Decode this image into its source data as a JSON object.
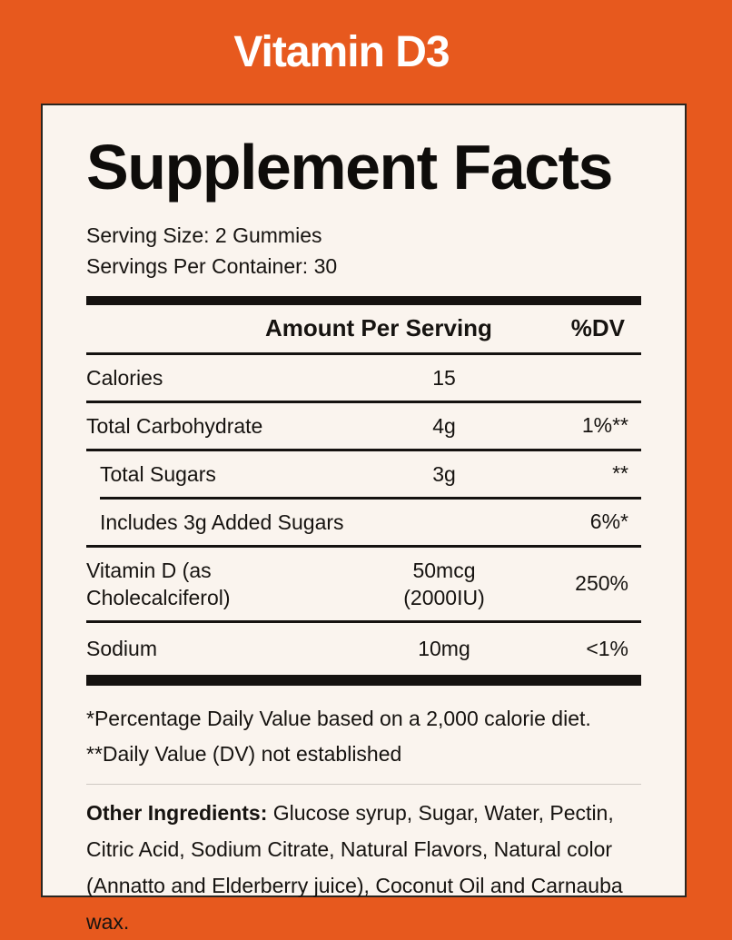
{
  "page": {
    "title": "Vitamin D3"
  },
  "panel": {
    "heading": "Supplement Facts",
    "serving_size": "Serving Size: 2 Gummies",
    "servings_per_container": "Servings Per Container: 30",
    "table": {
      "header": {
        "amount": "Amount Per Serving",
        "dv": "%DV"
      },
      "rows": [
        {
          "label": "Calories",
          "amount": "15",
          "dv": ""
        },
        {
          "label": "Total Carbohydrate",
          "amount": "4g",
          "dv": "1%**"
        },
        {
          "label": "Total Sugars",
          "amount": "3g",
          "dv": "**"
        },
        {
          "label": "Includes 3g Added Sugars",
          "amount": "",
          "dv": "6%*"
        },
        {
          "label": "Vitamin D (as\nCholecalciferol)",
          "amount": "50mcg\n(2000IU)",
          "dv": "250%"
        },
        {
          "label": "Sodium",
          "amount": "10mg",
          "dv": "<1%"
        }
      ]
    },
    "footnotes": [
      "*Percentage Daily Value based on a 2,000 calorie diet.",
      "**Daily Value (DV) not established"
    ],
    "other_ingredients": {
      "label": "Other Ingredients:",
      "text": "Glucose syrup, Sugar, Water, Pectin, Citric Acid, Sodium Citrate, Natural Flavors, Natural color (Annatto and Elderberry juice), Coconut Oil and Carnauba wax."
    }
  },
  "colors": {
    "background": "#E7591E",
    "panel": "#FAF4EE",
    "text": "#161310",
    "rule": "#151210",
    "divider": "#CFC9C2",
    "title_text": "#FFFFFF"
  }
}
